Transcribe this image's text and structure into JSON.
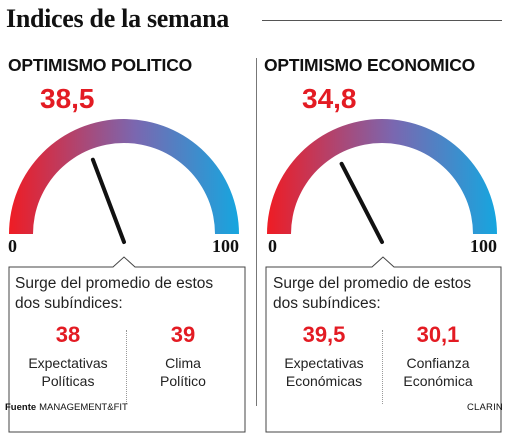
{
  "header": {
    "title": "Indices de la semana"
  },
  "chart_data": [
    {
      "type": "gauge",
      "title": "OPTIMISMO POLITICO",
      "value": 38.5,
      "value_label": "38,5",
      "min": 0,
      "max": 100,
      "min_label": "0",
      "max_label": "100",
      "colors": [
        "#ef1c24",
        "#7a67b0",
        "#16a6df"
      ],
      "needle_color": "#111111",
      "intro": "Surge del promedio de estos dos subíndices:",
      "subindices": [
        {
          "value": 38,
          "value_label": "38",
          "label_lines": [
            "Expectativas",
            "Políticas"
          ]
        },
        {
          "value": 39,
          "value_label": "39",
          "label_lines": [
            "Clima",
            "Político"
          ]
        }
      ]
    },
    {
      "type": "gauge",
      "title": "OPTIMISMO ECONOMICO",
      "value": 34.8,
      "value_label": "34,8",
      "min": 0,
      "max": 100,
      "min_label": "0",
      "max_label": "100",
      "colors": [
        "#ef1c24",
        "#7a67b0",
        "#16a6df"
      ],
      "needle_color": "#111111",
      "intro": "Surge del promedio de estos dos subíndices:",
      "subindices": [
        {
          "value": 39.5,
          "value_label": "39,5",
          "label_lines": [
            "Expectativas",
            "Económicas"
          ]
        },
        {
          "value": 30.1,
          "value_label": "30,1",
          "label_lines": [
            "Confianza",
            "Económica"
          ]
        }
      ]
    }
  ],
  "footer": {
    "source_label": "Fuente",
    "source": "MANAGEMENT&FIT",
    "brand": "CLARIN"
  },
  "colors": {
    "accent_red": "#e31b23",
    "text": "#111111"
  }
}
